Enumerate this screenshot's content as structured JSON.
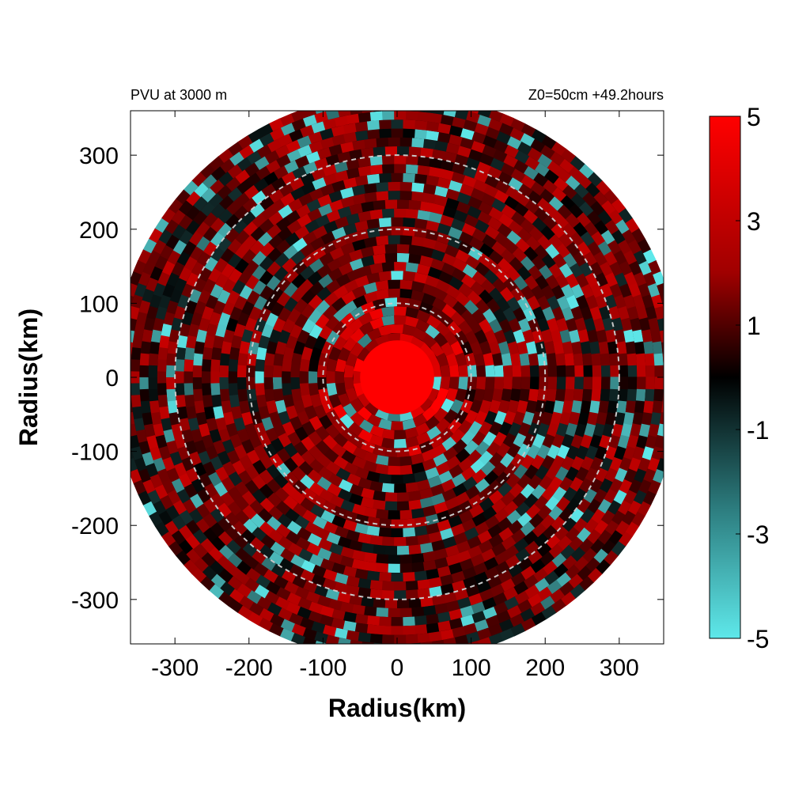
{
  "chart_data": {
    "type": "heatmap",
    "title_left": "PVU at  3000 m",
    "title_right": "Z0=50cm  +49.2hours",
    "xlabel": "Radius(km)",
    "ylabel": "Radius(km)",
    "xlim": [
      -360,
      360
    ],
    "ylim": [
      -360,
      360
    ],
    "x_ticks": [
      "-300",
      "-200",
      "-100",
      "0",
      "100",
      "200",
      "300"
    ],
    "y_ticks": [
      "300",
      "200",
      "100",
      "0",
      "-100",
      "-200",
      "-300"
    ],
    "x_tick_values": [
      -300,
      -200,
      -100,
      0,
      100,
      200,
      300
    ],
    "y_tick_values": [
      300,
      200,
      100,
      0,
      -100,
      -200,
      -300
    ],
    "domain_radius_km": 380,
    "core_radius_km": 50,
    "range_rings_km": [
      100,
      200,
      300
    ],
    "grid": false,
    "colorbar": {
      "range": [
        -5,
        5
      ],
      "tick_labels": [
        "5",
        "3",
        "1",
        "-1",
        "-3",
        "-5"
      ],
      "tick_values": [
        5,
        3,
        1,
        -1,
        -3,
        -5
      ],
      "colors": {
        "max": "#ff0000",
        "mid": "#000000",
        "min": "#5ee8ea"
      }
    },
    "colors": {
      "ring": "#c8c8c8",
      "axes": "#000000",
      "background": "#ffffff"
    }
  }
}
